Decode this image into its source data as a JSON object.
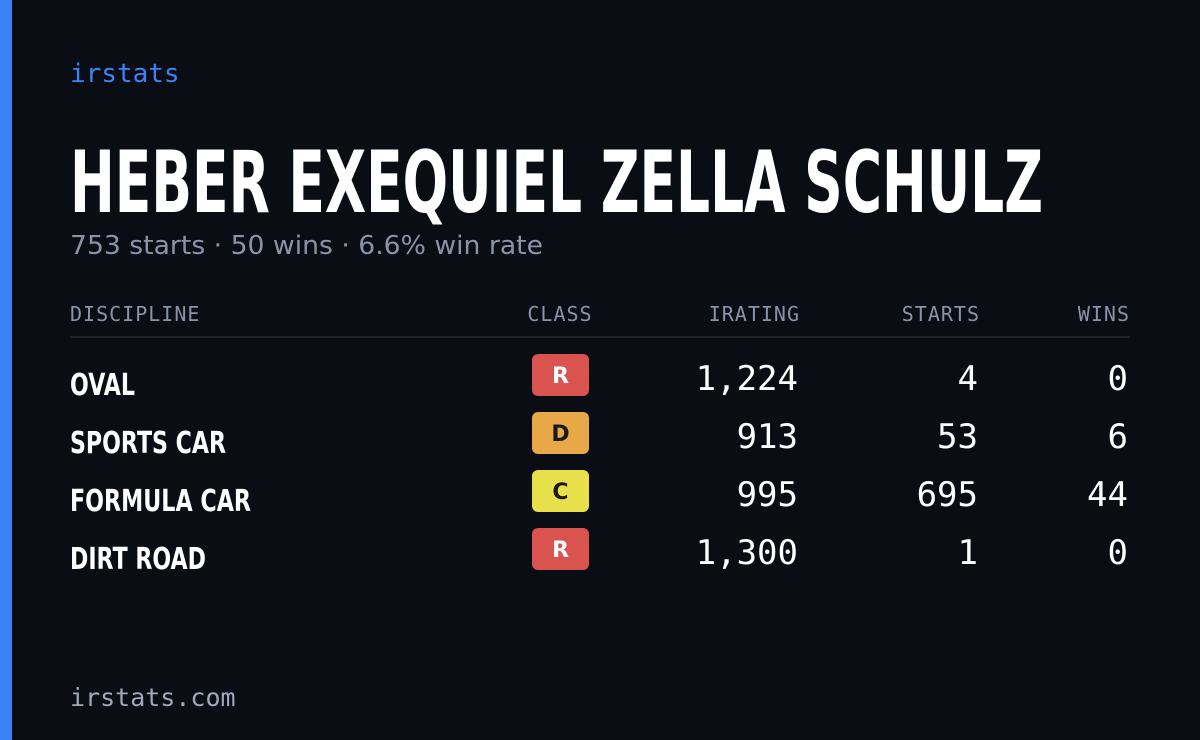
{
  "header": {
    "brand": "irstats",
    "title": "HEBER EXEQUIEL ZELLA SCHULZ",
    "subtitle": "753 starts · 50 wins · 6.6% win rate"
  },
  "table": {
    "columns": [
      "DISCIPLINE",
      "CLASS",
      "IRATING",
      "STARTS",
      "WINS"
    ],
    "rows": [
      {
        "discipline": "OVAL",
        "class": "R",
        "irating": "1,224",
        "starts": "4",
        "wins": "0"
      },
      {
        "discipline": "SPORTS CAR",
        "class": "D",
        "irating": "913",
        "starts": "53",
        "wins": "6"
      },
      {
        "discipline": "FORMULA CAR",
        "class": "C",
        "irating": "995",
        "starts": "695",
        "wins": "44"
      },
      {
        "discipline": "DIRT ROAD",
        "class": "R",
        "irating": "1,300",
        "starts": "1",
        "wins": "0"
      }
    ]
  },
  "footer": {
    "url": "irstats.com"
  }
}
